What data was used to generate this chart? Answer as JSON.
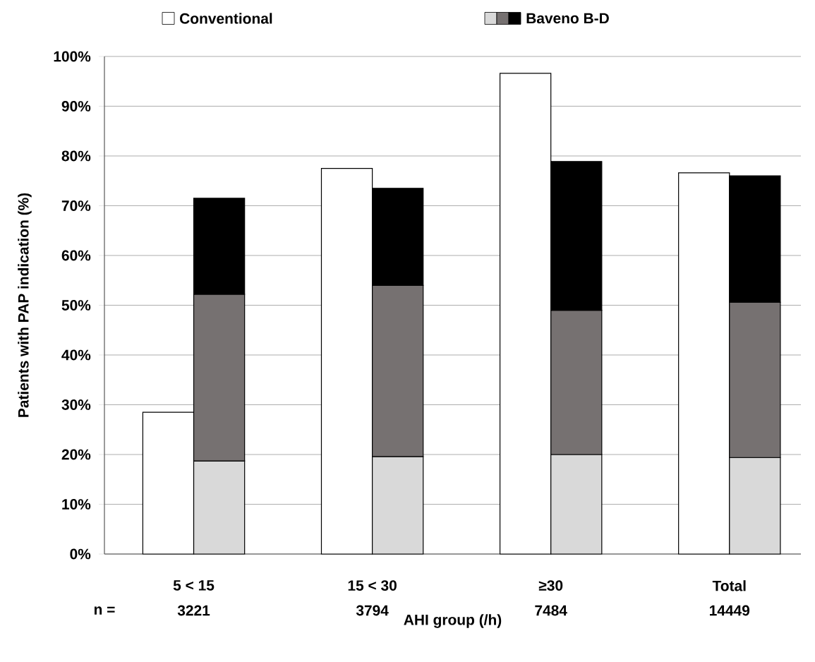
{
  "chart_data": {
    "type": "bar",
    "xlabel": "AHI group (/h)",
    "ylabel": "Patients with PAP indication (%)",
    "categories": [
      "5 < 15",
      "15 < 30",
      "≥30",
      "Total"
    ],
    "series": [
      {
        "name": "Conventional",
        "color": "#ffffff",
        "values": [
          28.5,
          77.5,
          96.6,
          76.6
        ]
      },
      {
        "color": "#d9d9d9",
        "base": [
          0,
          0,
          0,
          0
        ],
        "values": [
          18.7,
          19.6,
          20.0,
          19.4
        ]
      },
      {
        "color": "#767171",
        "base": [
          18.7,
          19.6,
          20.0,
          19.4
        ],
        "values": [
          33.5,
          34.4,
          29.0,
          31.2
        ]
      },
      {
        "name": "Baveno B-D",
        "color": "#000000",
        "base": [
          52.2,
          54.0,
          49.0,
          50.6
        ],
        "values": [
          19.3,
          19.5,
          29.9,
          25.4
        ]
      }
    ],
    "ylim": [
      0,
      100
    ],
    "yticks": [
      {
        "value": 0,
        "label": "0%"
      },
      {
        "value": 10,
        "label": "10%"
      },
      {
        "value": 20,
        "label": "20%"
      },
      {
        "value": 30,
        "label": "30%"
      },
      {
        "value": 40,
        "label": "40%"
      },
      {
        "value": 50,
        "label": "50%"
      },
      {
        "value": 60,
        "label": "60%"
      },
      {
        "value": 70,
        "label": "70%"
      },
      {
        "value": 80,
        "label": "80%"
      },
      {
        "value": 90,
        "label": "90%"
      },
      {
        "value": 100,
        "label": "100%"
      }
    ],
    "grid": "y",
    "legend": "top",
    "annotations": [
      "n =",
      "3221",
      "3794",
      "7484",
      "14449"
    ]
  }
}
